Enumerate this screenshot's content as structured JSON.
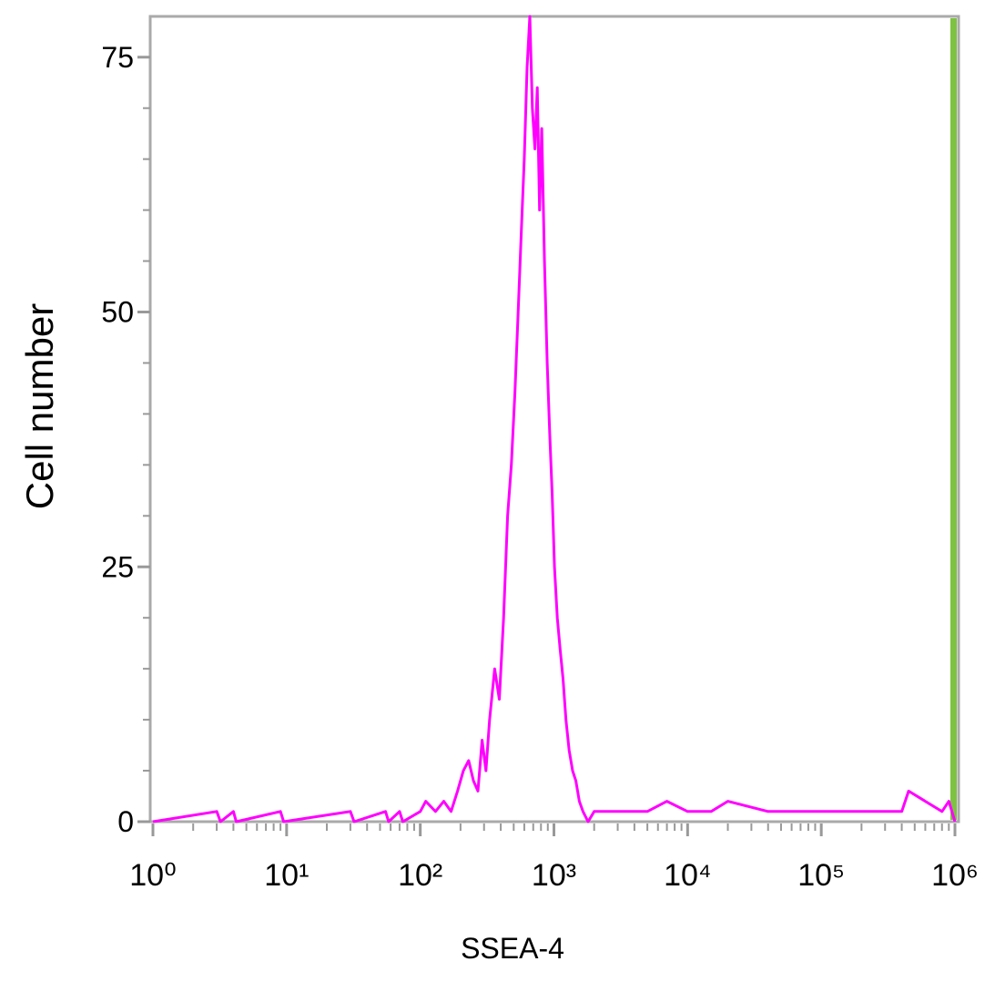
{
  "chart_data": {
    "type": "line",
    "x_label": "SSEA-4",
    "y_label": "Cell number",
    "x_log": true,
    "xlim": [
      1,
      1000000
    ],
    "xticks": [
      {
        "value": 1,
        "label": "10⁰"
      },
      {
        "value": 10,
        "label": "10¹"
      },
      {
        "value": 100,
        "label": "10²"
      },
      {
        "value": 1000,
        "label": "10³"
      },
      {
        "value": 10000,
        "label": "10⁴"
      },
      {
        "value": 100000,
        "label": "10⁵"
      },
      {
        "value": 1000000,
        "label": "10⁶"
      }
    ],
    "xminorticks": [
      2,
      3,
      4,
      5,
      6,
      7,
      8,
      9,
      20,
      30,
      40,
      50,
      60,
      70,
      80,
      90,
      200,
      300,
      400,
      500,
      600,
      700,
      800,
      900,
      2000,
      3000,
      4000,
      5000,
      6000,
      7000,
      8000,
      9000,
      20000,
      30000,
      40000,
      50000,
      60000,
      70000,
      80000,
      90000,
      200000,
      300000,
      400000,
      500000,
      600000,
      700000,
      800000,
      900000
    ],
    "ylim": [
      0,
      79
    ],
    "yticks": [
      0,
      25,
      50,
      75
    ],
    "yminorticks": [
      5,
      10,
      15,
      20,
      30,
      35,
      40,
      45,
      55,
      60,
      65,
      70
    ],
    "series": [
      {
        "color": "#ff00ff",
        "x": [
          1,
          3,
          3.2,
          4,
          4.2,
          9,
          9.5,
          30,
          32,
          55,
          58,
          70,
          74,
          100,
          110,
          130,
          150,
          170,
          190,
          210,
          230,
          250,
          270,
          290,
          310,
          330,
          360,
          390,
          420,
          450,
          480,
          510,
          540,
          570,
          600,
          630,
          660,
          690,
          720,
          750,
          780,
          810,
          850,
          890,
          930,
          970,
          1010,
          1060,
          1110,
          1170,
          1230,
          1300,
          1380,
          1460,
          1550,
          1650,
          1800,
          2000,
          3000,
          5000,
          7000,
          10000,
          15000,
          20000,
          40000,
          70000,
          100000,
          200000,
          400000,
          450000,
          800000,
          900000,
          1000000
        ],
        "values": [
          0,
          1,
          0,
          1,
          0,
          1,
          0,
          1,
          0,
          1,
          0,
          1,
          0,
          1,
          2,
          1,
          2,
          1,
          3,
          5,
          6,
          4,
          3,
          8,
          5,
          10,
          15,
          12,
          20,
          30,
          35,
          42,
          50,
          58,
          65,
          74,
          79,
          70,
          66,
          72,
          60,
          68,
          55,
          45,
          38,
          32,
          25,
          20,
          17,
          14,
          10,
          7,
          5,
          4,
          2,
          1,
          0,
          1,
          1,
          1,
          2,
          1,
          1,
          2,
          1,
          1,
          1,
          1,
          1,
          3,
          1,
          2,
          0
        ]
      }
    ]
  }
}
